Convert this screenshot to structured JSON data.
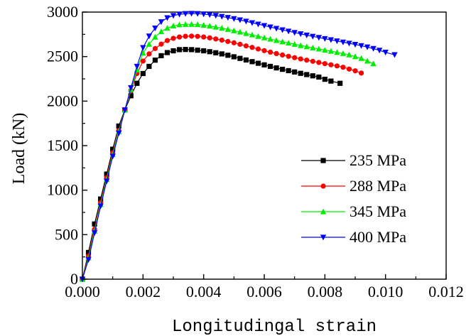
{
  "chart_data": {
    "type": "line",
    "title": "",
    "xlabel": "Longitudingal strain",
    "ylabel": "Load (kN)",
    "xlim": [
      0,
      0.012
    ],
    "ylim": [
      0,
      3000
    ],
    "x_ticks": [
      0.0,
      0.002,
      0.004,
      0.006,
      0.008,
      0.01,
      0.012
    ],
    "x_tick_labels": [
      "0.000",
      "0.002",
      "0.004",
      "0.006",
      "0.008",
      "0.010",
      "0.012"
    ],
    "y_ticks": [
      0,
      500,
      1000,
      1500,
      2000,
      2500,
      3000
    ],
    "y_tick_labels": [
      "0",
      "500",
      "1000",
      "1500",
      "2000",
      "2500",
      "3000"
    ],
    "grid": false,
    "legend_position": "center-right",
    "series": [
      {
        "name": "235 MPa",
        "color": "#000000",
        "marker": "square",
        "x": [
          0.0,
          0.0002,
          0.0004,
          0.0006,
          0.0008,
          0.001,
          0.0012,
          0.0014,
          0.0016,
          0.0018,
          0.002,
          0.0022,
          0.0024,
          0.0026,
          0.0028,
          0.003,
          0.0032,
          0.0034,
          0.0036,
          0.0038,
          0.004,
          0.0042,
          0.0044,
          0.0046,
          0.0048,
          0.005,
          0.0052,
          0.0054,
          0.0056,
          0.0058,
          0.006,
          0.0062,
          0.0064,
          0.0066,
          0.0068,
          0.007,
          0.0072,
          0.0074,
          0.0076,
          0.0078,
          0.008,
          0.0082,
          0.0085
        ],
        "y": [
          0,
          300,
          620,
          900,
          1180,
          1460,
          1720,
          1900,
          2060,
          2200,
          2310,
          2390,
          2460,
          2510,
          2545,
          2565,
          2578,
          2580,
          2578,
          2572,
          2565,
          2555,
          2543,
          2530,
          2515,
          2498,
          2480,
          2462,
          2443,
          2425,
          2407,
          2390,
          2373,
          2357,
          2342,
          2327,
          2312,
          2298,
          2284,
          2270,
          2245,
          2225,
          2200
        ]
      },
      {
        "name": "288 MPa",
        "color": "#ff0000",
        "marker": "circle",
        "x": [
          0.0,
          0.0002,
          0.0004,
          0.0006,
          0.0008,
          0.001,
          0.0012,
          0.0014,
          0.0016,
          0.0018,
          0.002,
          0.0022,
          0.0024,
          0.0026,
          0.0028,
          0.003,
          0.0032,
          0.0034,
          0.0036,
          0.0038,
          0.004,
          0.0042,
          0.0044,
          0.0046,
          0.0048,
          0.005,
          0.0052,
          0.0054,
          0.0056,
          0.0058,
          0.006,
          0.0062,
          0.0064,
          0.0066,
          0.0068,
          0.007,
          0.0072,
          0.0074,
          0.0076,
          0.0078,
          0.008,
          0.0082,
          0.0084,
          0.0086,
          0.0088,
          0.009,
          0.0092
        ],
        "y": [
          0,
          260,
          560,
          860,
          1140,
          1420,
          1670,
          1900,
          2120,
          2310,
          2450,
          2530,
          2590,
          2640,
          2680,
          2705,
          2720,
          2728,
          2730,
          2727,
          2720,
          2710,
          2698,
          2685,
          2670,
          2655,
          2638,
          2620,
          2603,
          2585,
          2567,
          2550,
          2534,
          2518,
          2503,
          2488,
          2474,
          2460,
          2447,
          2434,
          2421,
          2408,
          2395,
          2380,
          2360,
          2340,
          2315
        ]
      },
      {
        "name": "345 MPa",
        "color": "#00ee00",
        "marker": "triangle-up",
        "x": [
          0.0,
          0.0002,
          0.0004,
          0.0006,
          0.0008,
          0.001,
          0.0012,
          0.0014,
          0.0016,
          0.0018,
          0.002,
          0.0022,
          0.0024,
          0.0026,
          0.0028,
          0.003,
          0.0032,
          0.0034,
          0.0036,
          0.0038,
          0.004,
          0.0042,
          0.0044,
          0.0046,
          0.0048,
          0.005,
          0.0052,
          0.0054,
          0.0056,
          0.0058,
          0.006,
          0.0062,
          0.0064,
          0.0066,
          0.0068,
          0.007,
          0.0072,
          0.0074,
          0.0076,
          0.0078,
          0.008,
          0.0082,
          0.0084,
          0.0086,
          0.0088,
          0.009,
          0.0092,
          0.0094,
          0.0096
        ],
        "y": [
          0,
          240,
          540,
          840,
          1120,
          1400,
          1660,
          1900,
          2130,
          2350,
          2540,
          2640,
          2720,
          2780,
          2820,
          2845,
          2858,
          2862,
          2863,
          2860,
          2853,
          2843,
          2832,
          2820,
          2806,
          2791,
          2776,
          2760,
          2744,
          2728,
          2712,
          2697,
          2682,
          2667,
          2653,
          2639,
          2625,
          2612,
          2599,
          2586,
          2573,
          2561,
          2548,
          2535,
          2520,
          2500,
          2480,
          2450,
          2420
        ]
      },
      {
        "name": "400 MPa",
        "color": "#0000ff",
        "marker": "triangle-down",
        "x": [
          0.0,
          0.0002,
          0.0004,
          0.0006,
          0.0008,
          0.001,
          0.0012,
          0.0014,
          0.0016,
          0.0018,
          0.002,
          0.0022,
          0.0024,
          0.0026,
          0.0028,
          0.003,
          0.0032,
          0.0034,
          0.0036,
          0.0038,
          0.004,
          0.0042,
          0.0044,
          0.0046,
          0.0048,
          0.005,
          0.0052,
          0.0054,
          0.0056,
          0.0058,
          0.006,
          0.0062,
          0.0064,
          0.0066,
          0.0068,
          0.007,
          0.0072,
          0.0074,
          0.0076,
          0.0078,
          0.008,
          0.0082,
          0.0084,
          0.0086,
          0.0088,
          0.009,
          0.0092,
          0.0094,
          0.0096,
          0.0098,
          0.01,
          0.0103
        ],
        "y": [
          0,
          220,
          520,
          820,
          1100,
          1380,
          1640,
          1900,
          2150,
          2390,
          2600,
          2730,
          2820,
          2890,
          2935,
          2960,
          2975,
          2982,
          2984,
          2982,
          2977,
          2970,
          2961,
          2950,
          2938,
          2925,
          2911,
          2896,
          2880,
          2864,
          2848,
          2832,
          2816,
          2800,
          2785,
          2770,
          2755,
          2741,
          2727,
          2714,
          2701,
          2688,
          2675,
          2662,
          2649,
          2636,
          2622,
          2607,
          2590,
          2570,
          2548,
          2520
        ]
      }
    ]
  }
}
